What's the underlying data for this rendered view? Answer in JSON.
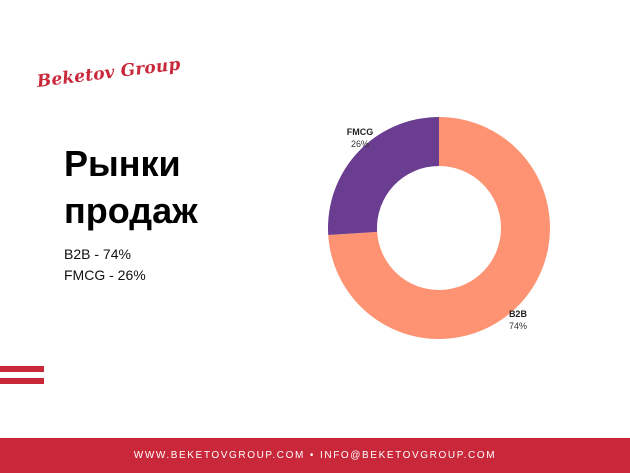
{
  "brand": {
    "logo_text": "Beketov Group",
    "accent": "#c8283a"
  },
  "title": {
    "line1": "Рынки",
    "line2": "продаж"
  },
  "summary": {
    "line1": "B2B - 74%",
    "line2": "FMCG - 26%"
  },
  "footer": {
    "site": "WWW.BEKETOVGROUP.COM",
    "separator": "•",
    "email": "INFO@BEKETOVGROUP.COM"
  },
  "chart_data": {
    "type": "pie",
    "variant": "donut",
    "title": "",
    "categories": [
      "B2B",
      "FMCG"
    ],
    "values": [
      74,
      26
    ],
    "value_labels": [
      "74%",
      "26%"
    ],
    "colors": [
      "#fd9372",
      "#6a3d91"
    ],
    "legend": "none",
    "grid": false
  }
}
